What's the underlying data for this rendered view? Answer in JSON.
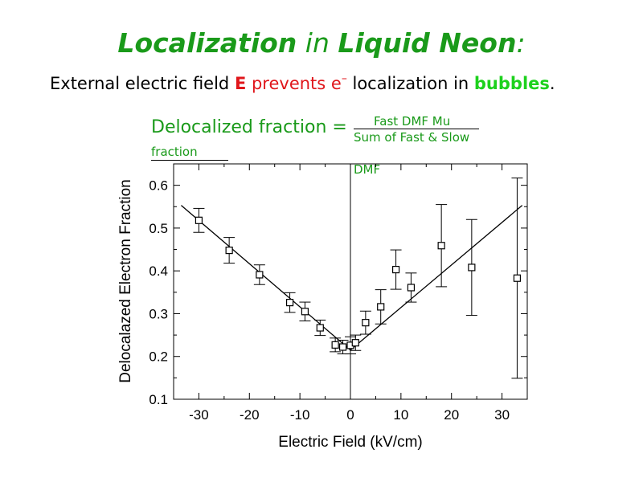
{
  "title": {
    "part1": "Localization",
    "part2": " in ",
    "part3": "Liquid Neon",
    "part4": ":"
  },
  "subtitle": {
    "t1": "External electric field ",
    "t2": "E",
    "t3": " prevents e",
    "t4": "–",
    "t5": " localization in ",
    "t6": "bubbles",
    "t7": "."
  },
  "definition": {
    "lhs": "Delocalized fraction =",
    "numerator": "Fast DMF Mu",
    "denominator": "Sum of Fast & Slow",
    "tail1": "fraction",
    "tail2": "DMF"
  },
  "colors": {
    "title_green": "#1a9a1a",
    "red": "#e0161b",
    "bright_green": "#1dd11d"
  },
  "chart_data": {
    "type": "scatter",
    "xlabel": "Electric Field (kV/cm)",
    "ylabel": "Delocalazed Electron Fraction",
    "xlim": [
      -35,
      35
    ],
    "ylim": [
      0.1,
      0.65
    ],
    "xticks": [
      -30,
      -20,
      -10,
      0,
      10,
      20,
      30
    ],
    "yticks": [
      0.1,
      0.2,
      0.3,
      0.4,
      0.5,
      0.6
    ],
    "xtick_labels": [
      "-30",
      "-20",
      "-10",
      "0",
      "10",
      "20",
      "30"
    ],
    "ytick_labels": [
      "0.1",
      "0.2",
      "0.3",
      "0.4",
      "0.5",
      "0.6"
    ],
    "vertical_line_x": 0,
    "points": [
      {
        "x": -30.0,
        "y": 0.518,
        "err": 0.028
      },
      {
        "x": -24.0,
        "y": 0.448,
        "err": 0.03
      },
      {
        "x": -18.0,
        "y": 0.391,
        "err": 0.023
      },
      {
        "x": -12.0,
        "y": 0.326,
        "err": 0.023
      },
      {
        "x": -9.0,
        "y": 0.305,
        "err": 0.022
      },
      {
        "x": -6.0,
        "y": 0.267,
        "err": 0.018
      },
      {
        "x": -3.0,
        "y": 0.227,
        "err": 0.016
      },
      {
        "x": -1.5,
        "y": 0.222,
        "err": 0.016
      },
      {
        "x": 0.0,
        "y": 0.226,
        "err": 0.02
      },
      {
        "x": 1.0,
        "y": 0.232,
        "err": 0.018
      },
      {
        "x": 3.0,
        "y": 0.279,
        "err": 0.027
      },
      {
        "x": 6.0,
        "y": 0.316,
        "err": 0.04
      },
      {
        "x": 9.0,
        "y": 0.403,
        "err": 0.046
      },
      {
        "x": 12.0,
        "y": 0.361,
        "err": 0.034
      },
      {
        "x": 18.0,
        "y": 0.459,
        "err": 0.096
      },
      {
        "x": 24.0,
        "y": 0.408,
        "err": 0.112
      },
      {
        "x": 33.0,
        "y": 0.383,
        "err": 0.234
      }
    ],
    "fit_lines": [
      {
        "x": [
          -33.5,
          0.0
        ],
        "y": [
          0.553,
          0.215
        ]
      },
      {
        "x": [
          0.0,
          34.0
        ],
        "y": [
          0.215,
          0.553
        ]
      }
    ]
  }
}
